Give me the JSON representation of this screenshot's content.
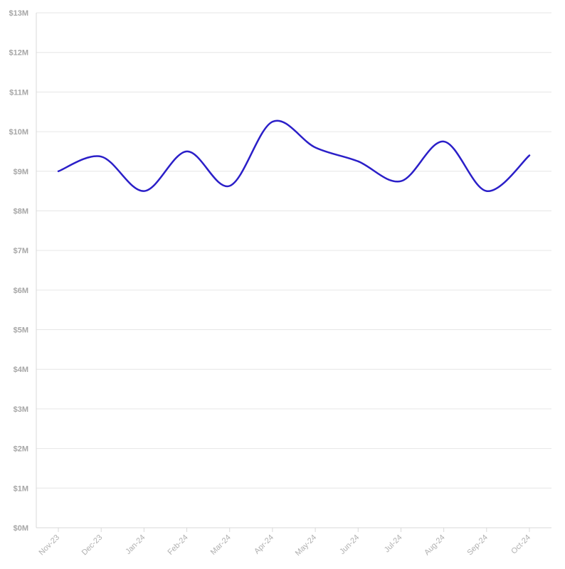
{
  "chart_data": {
    "type": "line",
    "categories": [
      "Nov-23",
      "Dec-23",
      "Jan-24",
      "Feb-24",
      "Mar-24",
      "Apr-24",
      "May-24",
      "Jun-24",
      "Jul-24",
      "Aug-24",
      "Sep-24",
      "Oct-24"
    ],
    "series": [
      {
        "values": [
          9.0,
          9.37,
          8.5,
          9.5,
          8.63,
          10.25,
          9.6,
          9.25,
          8.75,
          9.75,
          8.5,
          9.4
        ]
      }
    ],
    "y_ticks": [
      "$0M",
      "$1M",
      "$2M",
      "$3M",
      "$4M",
      "$5M",
      "$6M",
      "$7M",
      "$8M",
      "$9M",
      "$10M",
      "$11M",
      "$12M",
      "$13M"
    ],
    "ylim": [
      0,
      13
    ],
    "y_unit": "millions USD",
    "grid": true,
    "legend": "none",
    "colors": {
      "series": "#2b1fc8",
      "grid": "#e6e6e6",
      "axis": "#d9d9d9",
      "tick_text": "#a6a6a6"
    }
  }
}
